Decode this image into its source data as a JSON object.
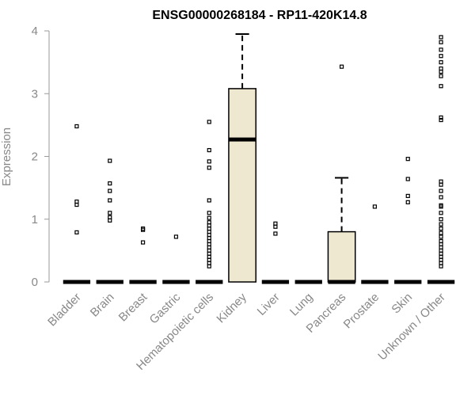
{
  "chart_data": {
    "type": "boxplot",
    "title": "ENSG00000268184 - RP11-420K14.8",
    "xlabel": "",
    "ylabel": "Expression",
    "ylim": [
      0,
      4
    ],
    "yticks": [
      0,
      1,
      2,
      3,
      4
    ],
    "box_color": "#efe8d0",
    "categories": [
      "Bladder",
      "Brain",
      "Breast",
      "Gastric",
      "Hematopoietic cells",
      "Kidney",
      "Liver",
      "Lung",
      "Pancreas",
      "Prostate",
      "Skin",
      "Unknown / Other"
    ],
    "boxes": [
      {
        "q1": 0,
        "median": 0,
        "q3": 0,
        "whisker_low": 0,
        "whisker_high": 0,
        "outliers": [
          2.48,
          1.28,
          1.23,
          0.79
        ]
      },
      {
        "q1": 0,
        "median": 0,
        "q3": 0,
        "whisker_low": 0,
        "whisker_high": 0,
        "outliers": [
          1.93,
          1.57,
          1.45,
          1.3,
          1.1,
          1.03,
          0.98
        ]
      },
      {
        "q1": 0,
        "median": 0,
        "q3": 0,
        "whisker_low": 0,
        "whisker_high": 0,
        "outliers": [
          0.85,
          0.83,
          0.63
        ]
      },
      {
        "q1": 0,
        "median": 0,
        "q3": 0,
        "whisker_low": 0,
        "whisker_high": 0,
        "outliers": [
          0.72
        ]
      },
      {
        "q1": 0,
        "median": 0,
        "q3": 0,
        "whisker_low": 0,
        "whisker_high": 0,
        "outliers": [
          2.55,
          2.1,
          1.92,
          1.82,
          1.3,
          1.1,
          1.02,
          0.95,
          0.9,
          0.85,
          0.8,
          0.75,
          0.7,
          0.65,
          0.6,
          0.55,
          0.5,
          0.45,
          0.4,
          0.35,
          0.3,
          0.25
        ]
      },
      {
        "q1": 0,
        "median": 2.27,
        "q3": 3.08,
        "whisker_low": 0,
        "whisker_high": 3.95,
        "outliers": []
      },
      {
        "q1": 0,
        "median": 0,
        "q3": 0,
        "whisker_low": 0,
        "whisker_high": 0,
        "outliers": [
          0.93,
          0.88,
          0.77
        ]
      },
      {
        "q1": 0,
        "median": 0,
        "q3": 0,
        "whisker_low": 0,
        "whisker_high": 0,
        "outliers": []
      },
      {
        "q1": 0,
        "median": 0,
        "q3": 0.8,
        "whisker_low": 0,
        "whisker_high": 1.66,
        "outliers": [
          3.43
        ]
      },
      {
        "q1": 0,
        "median": 0,
        "q3": 0,
        "whisker_low": 0,
        "whisker_high": 0,
        "outliers": [
          1.2
        ]
      },
      {
        "q1": 0,
        "median": 0,
        "q3": 0,
        "whisker_low": 0,
        "whisker_high": 0,
        "outliers": [
          1.96,
          1.64,
          1.37,
          1.27
        ]
      },
      {
        "q1": 0,
        "median": 0,
        "q3": 0,
        "whisker_low": 0,
        "whisker_high": 0,
        "outliers": [
          3.9,
          3.82,
          3.7,
          3.6,
          3.5,
          3.4,
          3.35,
          3.28,
          3.12,
          2.62,
          2.58,
          1.6,
          1.55,
          1.45,
          1.35,
          1.22,
          1.2,
          1.1,
          1.0,
          0.92,
          0.85,
          0.78,
          0.72,
          0.65,
          0.6,
          0.55,
          0.5,
          0.45,
          0.4,
          0.35,
          0.3,
          0.25
        ]
      }
    ]
  }
}
